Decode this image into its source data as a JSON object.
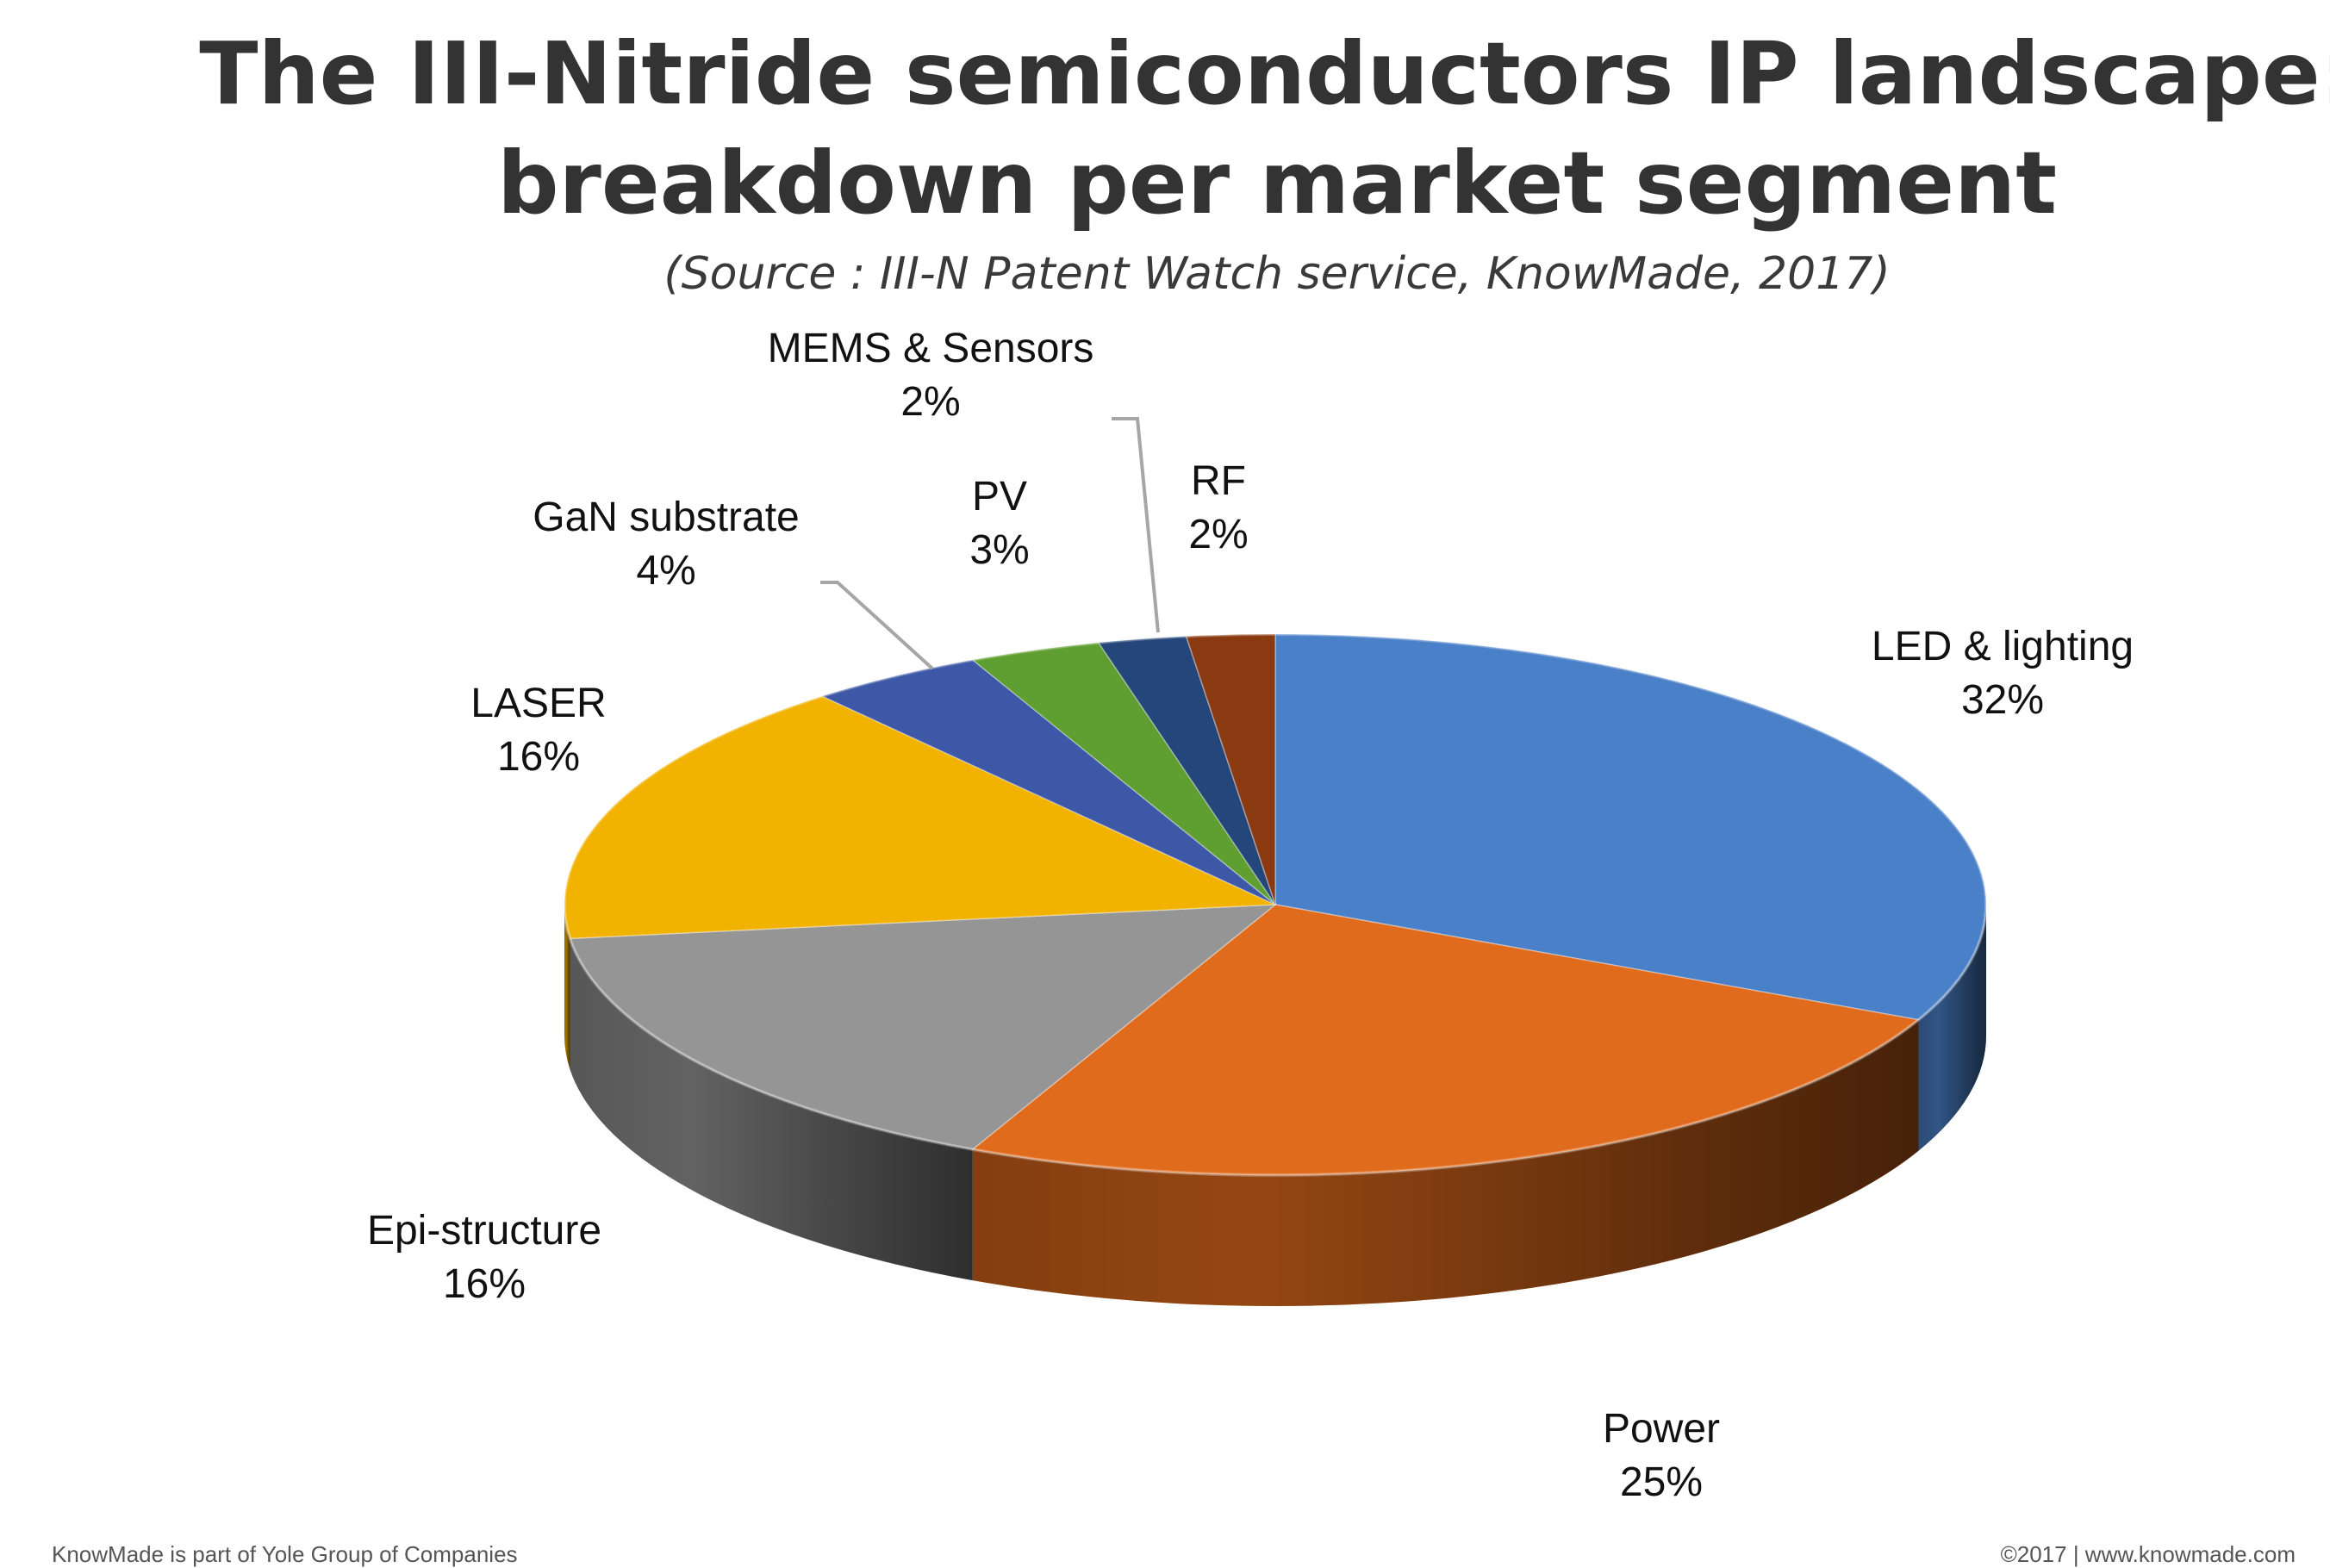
{
  "title_line1": "The III-Nitride semiconductors IP landscape:",
  "title_line2": "breakdown per market segment",
  "subtitle": "(Source : III-N Patent Watch service, KnowMade, 2017)",
  "footer_left": "KnowMade is part of Yole Group of Companies",
  "footer_right": "©2017 | www.knowmade.com",
  "chart_data": {
    "type": "pie",
    "style": "3d",
    "unit": "%",
    "slices": [
      {
        "label": "LED & lighting",
        "value": 32,
        "display": "32%",
        "color": "#4a80c8"
      },
      {
        "label": "Power",
        "value": 25,
        "display": "25%",
        "color": "#e06b1c"
      },
      {
        "label": "Epi-structure",
        "value": 16,
        "display": "16%",
        "color": "#959595"
      },
      {
        "label": "LASER",
        "value": 16,
        "display": "16%",
        "color": "#f2b200"
      },
      {
        "label": "GaN substrate",
        "value": 4,
        "display": "4%",
        "color": "#3e58a8"
      },
      {
        "label": "PV",
        "value": 3,
        "display": "3%",
        "color": "#5f9e30"
      },
      {
        "label": "MEMS & Sensors",
        "value": 2,
        "display": "2%",
        "color": "#24467a"
      },
      {
        "label": "RF",
        "value": 2,
        "display": "2%",
        "color": "#8a3a10"
      }
    ]
  }
}
